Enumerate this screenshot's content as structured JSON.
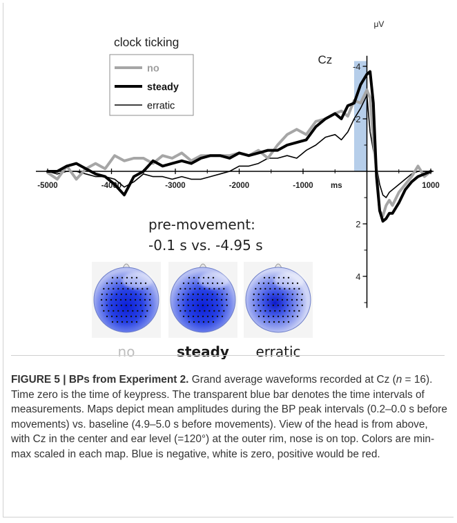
{
  "caption": {
    "label": "FIGURE 5 | BPs from Experiment 2.",
    "text_1": " Grand average waveforms recorded at Cz (",
    "n_symbol": "n",
    "text_2": " = 16). Time zero is the time of keypress. The transparent blue bar denotes the time intervals of measurements. Maps depict mean amplitudes during the BP peak intervals (0.2–0.0 s before movements) vs. baseline (4.9–5.0 s before movements). View of the head is from above, with Cz in the center and ear level (=120°) at the outer rim, nose is on top. Colors are min-max scaled in each map. Blue is negative, white is zero, positive would be red."
  },
  "chart_data": {
    "type": "line",
    "channel_label": "Cz",
    "y_unit": "μV",
    "x_unit": "ms",
    "legend_title": "clock ticking",
    "xlim": [
      -5000,
      1000
    ],
    "ylim": [
      -4.4,
      5.2
    ],
    "y_inverted": true,
    "x_ticks": [
      -5000,
      -4000,
      -3000,
      -2000,
      -1000,
      1000
    ],
    "x_tick_labels": [
      "-5000",
      "-4000",
      "-3000",
      "-2000",
      "-1000",
      "1000"
    ],
    "y_ticks": [
      -4,
      -2,
      2,
      4
    ],
    "y_tick_labels": [
      "-4",
      "-2",
      "2",
      "4"
    ],
    "highlight_interval": [
      -200,
      0
    ],
    "highlight_color": "#a9c6e6",
    "series": [
      {
        "name": "no",
        "color": "#a6a6a6",
        "width": 4,
        "x": [
          -5000,
          -4850,
          -4700,
          -4550,
          -4400,
          -4250,
          -4100,
          -3950,
          -3800,
          -3650,
          -3500,
          -3350,
          -3200,
          -3050,
          -2900,
          -2750,
          -2600,
          -2450,
          -2300,
          -2150,
          -2000,
          -1850,
          -1700,
          -1550,
          -1400,
          -1250,
          -1100,
          -950,
          -800,
          -650,
          -500,
          -400,
          -300,
          -200,
          -100,
          0,
          50,
          100,
          150,
          200,
          250,
          300,
          350,
          400,
          500,
          600,
          700,
          800,
          900,
          1000
        ],
        "y": [
          0.05,
          0.3,
          -0.2,
          0.3,
          -0.1,
          -0.3,
          -0.1,
          -0.6,
          -0.4,
          -0.5,
          -0.5,
          -0.3,
          -0.6,
          -0.5,
          -0.7,
          -0.4,
          -0.6,
          -0.6,
          -0.6,
          -0.6,
          -0.7,
          -0.6,
          -0.8,
          -0.5,
          -1.0,
          -1.4,
          -1.6,
          -1.4,
          -1.9,
          -2.0,
          -2.2,
          -2.3,
          -2.1,
          -2.7,
          -2.6,
          -3.1,
          -2.8,
          -1.2,
          0.0,
          1.5,
          1.7,
          1.3,
          1.1,
          1.3,
          0.8,
          0.5,
          0.2,
          -0.2,
          0.2,
          0.0
        ]
      },
      {
        "name": "steady",
        "color": "#000000",
        "width": 4,
        "x": [
          -5000,
          -4850,
          -4700,
          -4550,
          -4400,
          -4250,
          -4100,
          -3950,
          -3800,
          -3650,
          -3500,
          -3350,
          -3200,
          -3050,
          -2900,
          -2750,
          -2600,
          -2450,
          -2300,
          -2150,
          -2000,
          -1850,
          -1700,
          -1550,
          -1400,
          -1250,
          -1100,
          -950,
          -800,
          -650,
          -500,
          -400,
          -300,
          -200,
          -100,
          0,
          50,
          100,
          150,
          200,
          250,
          300,
          350,
          400,
          500,
          600,
          700,
          800,
          900,
          1000
        ],
        "y": [
          0.0,
          0.0,
          -0.2,
          -0.3,
          -0.1,
          0.1,
          0.2,
          0.5,
          0.9,
          0.2,
          0.0,
          -0.4,
          -0.2,
          -0.3,
          -0.4,
          -0.3,
          -0.5,
          -0.6,
          -0.6,
          -0.5,
          -0.7,
          -0.6,
          -0.7,
          -0.8,
          -0.8,
          -1.0,
          -1.1,
          -1.2,
          -1.7,
          -2.0,
          -2.2,
          -2.0,
          -2.5,
          -2.6,
          -3.3,
          -3.7,
          -3.8,
          -2.6,
          0.2,
          1.5,
          1.9,
          1.8,
          1.6,
          1.6,
          1.2,
          0.7,
          0.4,
          0.2,
          0.1,
          0.0
        ]
      },
      {
        "name": "erratic",
        "color": "#000000",
        "width": 1.6,
        "x": [
          -5000,
          -4850,
          -4700,
          -4550,
          -4400,
          -4250,
          -4100,
          -3950,
          -3800,
          -3650,
          -3500,
          -3350,
          -3200,
          -3050,
          -2900,
          -2750,
          -2600,
          -2450,
          -2300,
          -2150,
          -2000,
          -1850,
          -1700,
          -1550,
          -1400,
          -1250,
          -1100,
          -950,
          -800,
          -650,
          -500,
          -400,
          -300,
          -200,
          -100,
          0,
          50,
          100,
          150,
          200,
          250,
          300,
          350,
          400,
          500,
          600,
          700,
          800,
          900,
          1000
        ],
        "y": [
          0.0,
          0.1,
          0.0,
          0.0,
          0.1,
          0.2,
          0.2,
          0.3,
          0.6,
          0.4,
          0.1,
          0.2,
          0.2,
          0.3,
          0.2,
          0.3,
          0.3,
          0.2,
          0.1,
          0.0,
          -0.2,
          -0.2,
          -0.3,
          -0.5,
          -0.5,
          -0.6,
          -0.5,
          -0.8,
          -1.0,
          -1.3,
          -1.4,
          -1.2,
          -1.5,
          -2.0,
          -2.4,
          -2.9,
          -1.5,
          -0.8,
          -0.2,
          0.5,
          0.9,
          1.0,
          0.8,
          0.7,
          0.5,
          0.3,
          0.1,
          0.0,
          0.0,
          0.0
        ]
      }
    ]
  },
  "topo_maps": {
    "title_line_1": "pre-movement:",
    "title_line_2": "-0.1 s vs. -4.95 s",
    "maps": [
      {
        "label": "no",
        "label_color": "#bdbdbd",
        "label_weight": "normal"
      },
      {
        "label": "steady",
        "label_color": "#1a1a1a",
        "label_weight": "bold"
      },
      {
        "label": "erratic",
        "label_color": "#1a1a1a",
        "label_weight": "normal"
      }
    ]
  }
}
